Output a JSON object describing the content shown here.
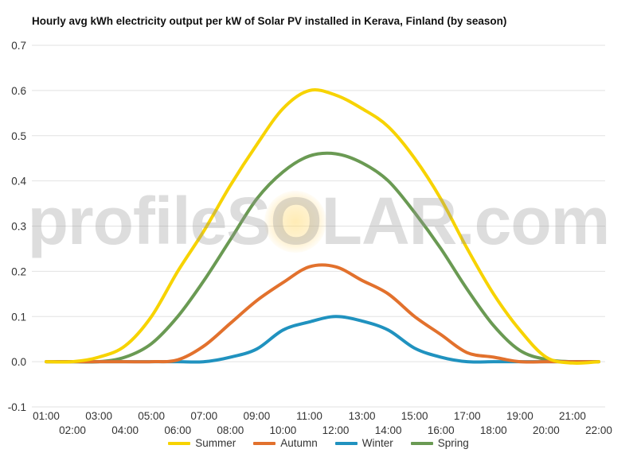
{
  "chart_data": {
    "type": "line",
    "title": "Hourly avg kWh electricity output per kW of Solar PV installed in Kerava, Finland (by season)",
    "xlabel": "",
    "ylabel": "",
    "ylim": [
      -0.1,
      0.7
    ],
    "yticks": [
      "0.7",
      "0.6",
      "0.5",
      "0.4",
      "0.3",
      "0.2",
      "0.1",
      "0.0",
      "-0.1"
    ],
    "categories": [
      "01:00",
      "02:00",
      "03:00",
      "04:00",
      "05:00",
      "06:00",
      "07:00",
      "08:00",
      "09:00",
      "10:00",
      "11:00",
      "12:00",
      "13:00",
      "14:00",
      "15:00",
      "16:00",
      "17:00",
      "18:00",
      "19:00",
      "20:00",
      "21:00",
      "22:00"
    ],
    "grid": true,
    "legend_position": "bottom",
    "watermark": "profileSOLAR.com",
    "series": [
      {
        "name": "Summer",
        "color": "#f7d300",
        "values": [
          0.0,
          0.0,
          0.01,
          0.035,
          0.1,
          0.2,
          0.29,
          0.39,
          0.48,
          0.56,
          0.6,
          0.59,
          0.56,
          0.52,
          0.45,
          0.36,
          0.25,
          0.15,
          0.07,
          0.01,
          -0.003,
          0.0
        ]
      },
      {
        "name": "Autumn",
        "color": "#e2712d",
        "values": [
          0.0,
          0.0,
          0.0,
          0.0,
          0.0,
          0.004,
          0.035,
          0.085,
          0.135,
          0.175,
          0.21,
          0.21,
          0.18,
          0.15,
          0.1,
          0.06,
          0.02,
          0.01,
          0.0,
          0.0,
          0.0,
          0.0
        ]
      },
      {
        "name": "Winter",
        "color": "#2092bf",
        "values": [
          0.0,
          0.0,
          0.0,
          0.0,
          0.0,
          0.0,
          0.0,
          0.01,
          0.028,
          0.07,
          0.088,
          0.1,
          0.09,
          0.07,
          0.03,
          0.01,
          0.0,
          0.0,
          0.0,
          0.0,
          0.0,
          0.0
        ]
      },
      {
        "name": "Spring",
        "color": "#6a9a53",
        "values": [
          0.0,
          0.0,
          0.0,
          0.01,
          0.04,
          0.1,
          0.18,
          0.27,
          0.36,
          0.42,
          0.455,
          0.46,
          0.44,
          0.4,
          0.33,
          0.25,
          0.16,
          0.08,
          0.025,
          0.005,
          0.0,
          0.0
        ]
      }
    ]
  }
}
